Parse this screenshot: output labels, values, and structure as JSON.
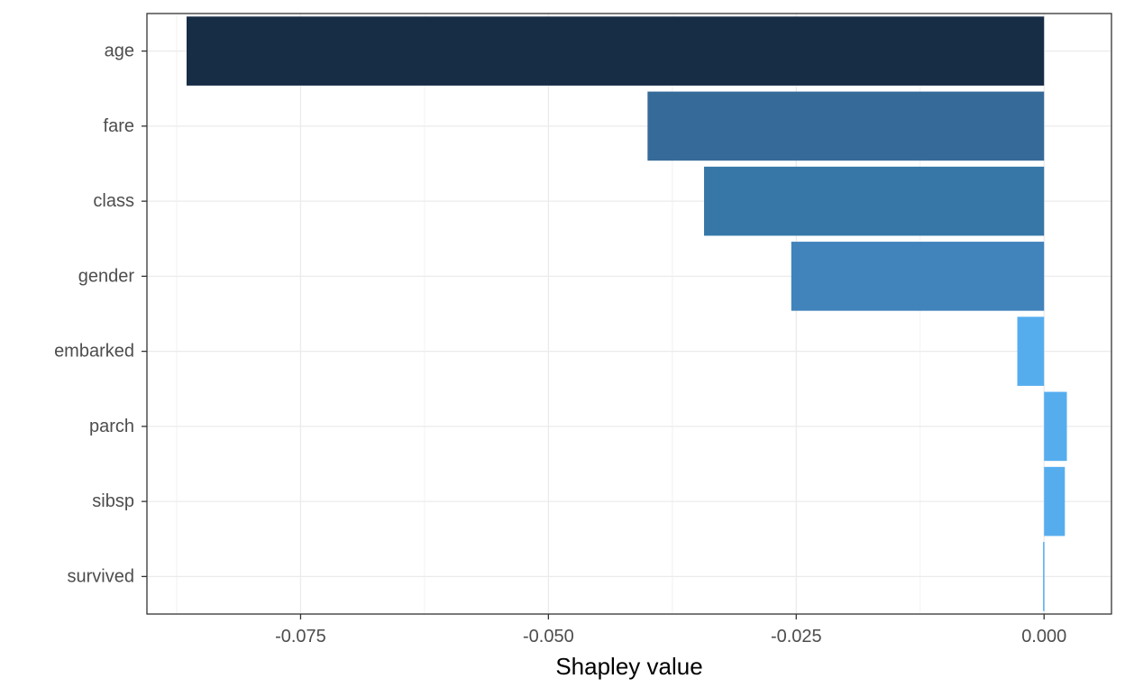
{
  "chart_data": {
    "type": "bar",
    "orientation": "horizontal",
    "categories": [
      "age",
      "fare",
      "class",
      "gender",
      "embarked",
      "parch",
      "sibsp",
      "survived"
    ],
    "values": [
      -0.0865,
      -0.04,
      -0.0343,
      -0.0255,
      -0.0027,
      0.0023,
      0.0021,
      -0.0001
    ],
    "bar_colors": [
      "#172d46",
      "#366b99",
      "#3777a8",
      "#4183bb",
      "#56adee",
      "#56adee",
      "#56adee",
      "#56adee"
    ],
    "title": "",
    "xlabel": "Shapley value",
    "ylabel": "",
    "xlim": [
      -0.0905,
      0.0068
    ],
    "x_ticks": [
      -0.075,
      -0.05,
      -0.025,
      0.0
    ],
    "x_tick_labels": [
      "-0.075",
      "-0.050",
      "-0.025",
      "0.000"
    ],
    "x_minor_ticks": [
      -0.0875,
      -0.0625,
      -0.0375,
      -0.0125
    ],
    "grid": true,
    "legend": "none"
  }
}
